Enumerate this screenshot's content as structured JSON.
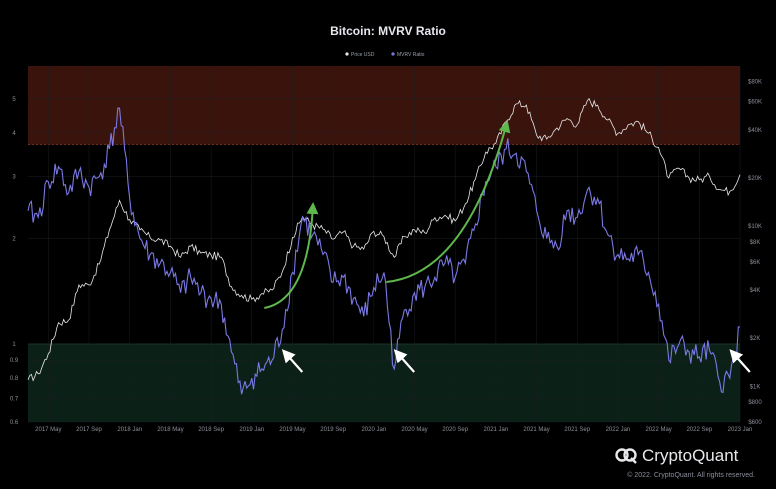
{
  "chart_data": {
    "type": "line",
    "title": "Bitcoin: MVRV Ratio",
    "legend_position": "top-center",
    "grid": true,
    "y_scale": "log",
    "y_right_scale": "log",
    "ylim": [
      0.6,
      6.2
    ],
    "y_right_lim": [
      600,
      100000
    ],
    "x_start": "2017-03",
    "x_end": "2023-01",
    "x_ticks": [
      "2017 May",
      "2017 Sep",
      "2018 Jan",
      "2018 May",
      "2018 Sep",
      "2019 Jan",
      "2019 May",
      "2019 Sep",
      "2020 Jan",
      "2020 May",
      "2020 Sep",
      "2021 Jan",
      "2021 May",
      "2021 Sep",
      "2022 Jan",
      "2022 May",
      "2022 Sep",
      "2023 Jan"
    ],
    "y_ticks_left": [
      "0.6",
      "0.7",
      "0.8",
      "0.9",
      "1",
      "2",
      "3",
      "4",
      "5"
    ],
    "y_ticks_right": [
      "$600",
      "$800",
      "$1K",
      "$2K",
      "$4K",
      "$6K",
      "$8K",
      "$10K",
      "$20K",
      "$40K",
      "$60K",
      "$80K"
    ],
    "zones": [
      {
        "name": "overvalued",
        "from": 3.7,
        "to": 6.2,
        "color": "#3a140c"
      },
      {
        "name": "undervalued",
        "from": 0.6,
        "to": 1.0,
        "color": "#0b2118"
      }
    ],
    "series": [
      {
        "name": "Price USD",
        "axis": "right",
        "color": "#e8e8e8",
        "points": [
          [
            "2017-03",
            1100
          ],
          [
            "2017-04",
            1200
          ],
          [
            "2017-05",
            1600
          ],
          [
            "2017-06",
            2500
          ],
          [
            "2017-07",
            2600
          ],
          [
            "2017-08",
            4300
          ],
          [
            "2017-09",
            4300
          ],
          [
            "2017-10",
            5800
          ],
          [
            "2017-11",
            9500
          ],
          [
            "2017-12",
            14500
          ],
          [
            "2018-01",
            11000
          ],
          [
            "2018-02",
            9500
          ],
          [
            "2018-03",
            8500
          ],
          [
            "2018-04",
            8200
          ],
          [
            "2018-05",
            7500
          ],
          [
            "2018-06",
            6400
          ],
          [
            "2018-07",
            7500
          ],
          [
            "2018-08",
            6800
          ],
          [
            "2018-09",
            6600
          ],
          [
            "2018-10",
            6400
          ],
          [
            "2018-11",
            4200
          ],
          [
            "2018-12",
            3700
          ],
          [
            "2019-01",
            3500
          ],
          [
            "2019-02",
            3800
          ],
          [
            "2019-03",
            4000
          ],
          [
            "2019-04",
            5200
          ],
          [
            "2019-05",
            8500
          ],
          [
            "2019-06",
            11500
          ],
          [
            "2019-07",
            10200
          ],
          [
            "2019-08",
            9600
          ],
          [
            "2019-09",
            8300
          ],
          [
            "2019-10",
            9200
          ],
          [
            "2019-11",
            7500
          ],
          [
            "2019-12",
            7200
          ],
          [
            "2020-01",
            9300
          ],
          [
            "2020-02",
            8600
          ],
          [
            "2020-03",
            6400
          ],
          [
            "2020-04",
            8600
          ],
          [
            "2020-05",
            9500
          ],
          [
            "2020-06",
            9100
          ],
          [
            "2020-07",
            11300
          ],
          [
            "2020-08",
            11700
          ],
          [
            "2020-09",
            10800
          ],
          [
            "2020-10",
            13800
          ],
          [
            "2020-11",
            19700
          ],
          [
            "2020-12",
            29000
          ],
          [
            "2021-01",
            33000
          ],
          [
            "2021-02",
            45000
          ],
          [
            "2021-03",
            58000
          ],
          [
            "2021-04",
            57000
          ],
          [
            "2021-05",
            37000
          ],
          [
            "2021-06",
            35000
          ],
          [
            "2021-07",
            41000
          ],
          [
            "2021-08",
            47000
          ],
          [
            "2021-09",
            43000
          ],
          [
            "2021-10",
            61000
          ],
          [
            "2021-11",
            57000
          ],
          [
            "2021-12",
            46000
          ],
          [
            "2022-01",
            38000
          ],
          [
            "2022-02",
            43000
          ],
          [
            "2022-03",
            45000
          ],
          [
            "2022-04",
            38000
          ],
          [
            "2022-05",
            31000
          ],
          [
            "2022-06",
            20000
          ],
          [
            "2022-07",
            23000
          ],
          [
            "2022-08",
            20000
          ],
          [
            "2022-09",
            19500
          ],
          [
            "2022-10",
            20500
          ],
          [
            "2022-11",
            17000
          ],
          [
            "2022-12",
            16500
          ],
          [
            "2023-01",
            21000
          ]
        ]
      },
      {
        "name": "MVRV Ratio",
        "axis": "left",
        "color": "#7b78e6",
        "points": [
          [
            "2017-03",
            2.4
          ],
          [
            "2017-04",
            2.3
          ],
          [
            "2017-05",
            2.9
          ],
          [
            "2017-06",
            3.2
          ],
          [
            "2017-07",
            2.7
          ],
          [
            "2017-08",
            3.1
          ],
          [
            "2017-09",
            2.8
          ],
          [
            "2017-10",
            3.0
          ],
          [
            "2017-11",
            3.6
          ],
          [
            "2017-12",
            4.7
          ],
          [
            "2018-01",
            2.6
          ],
          [
            "2018-02",
            2.0
          ],
          [
            "2018-03",
            1.8
          ],
          [
            "2018-04",
            1.7
          ],
          [
            "2018-05",
            1.6
          ],
          [
            "2018-06",
            1.4
          ],
          [
            "2018-07",
            1.55
          ],
          [
            "2018-08",
            1.4
          ],
          [
            "2018-09",
            1.35
          ],
          [
            "2018-10",
            1.3
          ],
          [
            "2018-11",
            0.95
          ],
          [
            "2018-12",
            0.72
          ],
          [
            "2019-01",
            0.8
          ],
          [
            "2019-02",
            0.85
          ],
          [
            "2019-03",
            0.9
          ],
          [
            "2019-04",
            1.1
          ],
          [
            "2019-05",
            1.6
          ],
          [
            "2019-06",
            2.3
          ],
          [
            "2019-07",
            2.05
          ],
          [
            "2019-08",
            1.8
          ],
          [
            "2019-09",
            1.5
          ],
          [
            "2019-10",
            1.55
          ],
          [
            "2019-11",
            1.35
          ],
          [
            "2019-12",
            1.2
          ],
          [
            "2020-01",
            1.45
          ],
          [
            "2020-02",
            1.6
          ],
          [
            "2020-03",
            0.85
          ],
          [
            "2020-04",
            1.25
          ],
          [
            "2020-05",
            1.4
          ],
          [
            "2020-06",
            1.45
          ],
          [
            "2020-07",
            1.55
          ],
          [
            "2020-08",
            1.7
          ],
          [
            "2020-09",
            1.55
          ],
          [
            "2020-10",
            1.7
          ],
          [
            "2020-11",
            2.2
          ],
          [
            "2020-12",
            2.9
          ],
          [
            "2021-01",
            3.2
          ],
          [
            "2021-02",
            3.6
          ],
          [
            "2021-03",
            3.5
          ],
          [
            "2021-04",
            3.1
          ],
          [
            "2021-05",
            2.4
          ],
          [
            "2021-06",
            2.0
          ],
          [
            "2021-07",
            1.9
          ],
          [
            "2021-08",
            2.4
          ],
          [
            "2021-09",
            2.3
          ],
          [
            "2021-10",
            2.75
          ],
          [
            "2021-11",
            2.6
          ],
          [
            "2021-12",
            2.05
          ],
          [
            "2022-01",
            1.8
          ],
          [
            "2022-02",
            1.75
          ],
          [
            "2022-03",
            1.8
          ],
          [
            "2022-04",
            1.6
          ],
          [
            "2022-05",
            1.3
          ],
          [
            "2022-06",
            0.9
          ],
          [
            "2022-07",
            1.0
          ],
          [
            "2022-08",
            0.95
          ],
          [
            "2022-09",
            0.92
          ],
          [
            "2022-10",
            0.96
          ],
          [
            "2022-11",
            0.78
          ],
          [
            "2022-12",
            0.8
          ],
          [
            "2023-01",
            1.12
          ]
        ]
      }
    ],
    "annotations": [
      {
        "type": "white-arrow",
        "at": "2019-04"
      },
      {
        "type": "white-arrow",
        "at": "2020-03"
      },
      {
        "type": "white-arrow",
        "at": "2022-12"
      },
      {
        "type": "green-curve",
        "from": "2019-04",
        "to": "2019-07"
      },
      {
        "type": "green-curve",
        "from": "2020-04",
        "to": "2021-02"
      }
    ]
  },
  "brand": {
    "name": "CryptoQuant",
    "copyright": "© 2022. CryptoQuant. All rights reserved."
  },
  "colors": {
    "background": "#000000",
    "grid": "#1b1d22",
    "arrow": "#ffffff",
    "annotation_curve": "#5fb84d"
  }
}
